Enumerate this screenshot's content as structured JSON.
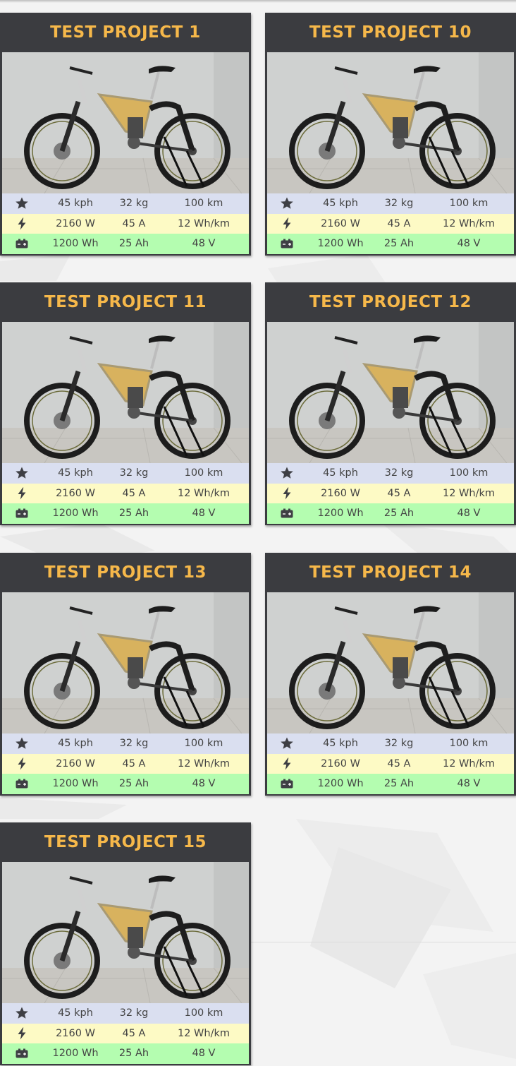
{
  "projects": [
    {
      "title": "TEST PROJECT 1",
      "speed": "45 kph",
      "weight": "32 kg",
      "range": "100 km",
      "power": "2160 W",
      "current": "45 A",
      "consumption": "12 Wh/km",
      "energy": "1200 Wh",
      "capacity": "25 Ah",
      "voltage": "48 V"
    },
    {
      "title": "TEST PROJECT 10",
      "speed": "45 kph",
      "weight": "32 kg",
      "range": "100 km",
      "power": "2160 W",
      "current": "45 A",
      "consumption": "12 Wh/km",
      "energy": "1200 Wh",
      "capacity": "25 Ah",
      "voltage": "48 V"
    },
    {
      "title": "TEST PROJECT 11",
      "speed": "45 kph",
      "weight": "32 kg",
      "range": "100 km",
      "power": "2160 W",
      "current": "45 A",
      "consumption": "12 Wh/km",
      "energy": "1200 Wh",
      "capacity": "25 Ah",
      "voltage": "48 V"
    },
    {
      "title": "TEST PROJECT 12",
      "speed": "45 kph",
      "weight": "32 kg",
      "range": "100 km",
      "power": "2160 W",
      "current": "45 A",
      "consumption": "12 Wh/km",
      "energy": "1200 Wh",
      "capacity": "25 Ah",
      "voltage": "48 V"
    },
    {
      "title": "TEST PROJECT 13",
      "speed": "45 kph",
      "weight": "32 kg",
      "range": "100 km",
      "power": "2160 W",
      "current": "45 A",
      "consumption": "12 Wh/km",
      "energy": "1200 Wh",
      "capacity": "25 Ah",
      "voltage": "48 V"
    },
    {
      "title": "TEST PROJECT 14",
      "speed": "45 kph",
      "weight": "32 kg",
      "range": "100 km",
      "power": "2160 W",
      "current": "45 A",
      "consumption": "12 Wh/km",
      "energy": "1200 Wh",
      "capacity": "25 Ah",
      "voltage": "48 V"
    },
    {
      "title": "TEST PROJECT 15",
      "speed": "45 kph",
      "weight": "32 kg",
      "range": "100 km",
      "power": "2160 W",
      "current": "45 A",
      "consumption": "12 Wh/km",
      "energy": "1200 Wh",
      "capacity": "25 Ah",
      "voltage": "48 V"
    }
  ],
  "icons": {
    "row1": "star-icon",
    "row2": "lightning-bolt-icon",
    "row3": "battery-icon"
  },
  "colors": {
    "card_header": "#3b3c40",
    "title_text": "#f6b84a",
    "row1_bg": "#dadff0",
    "row2_bg": "#fdfac5",
    "row3_bg": "#b4fdb0"
  }
}
